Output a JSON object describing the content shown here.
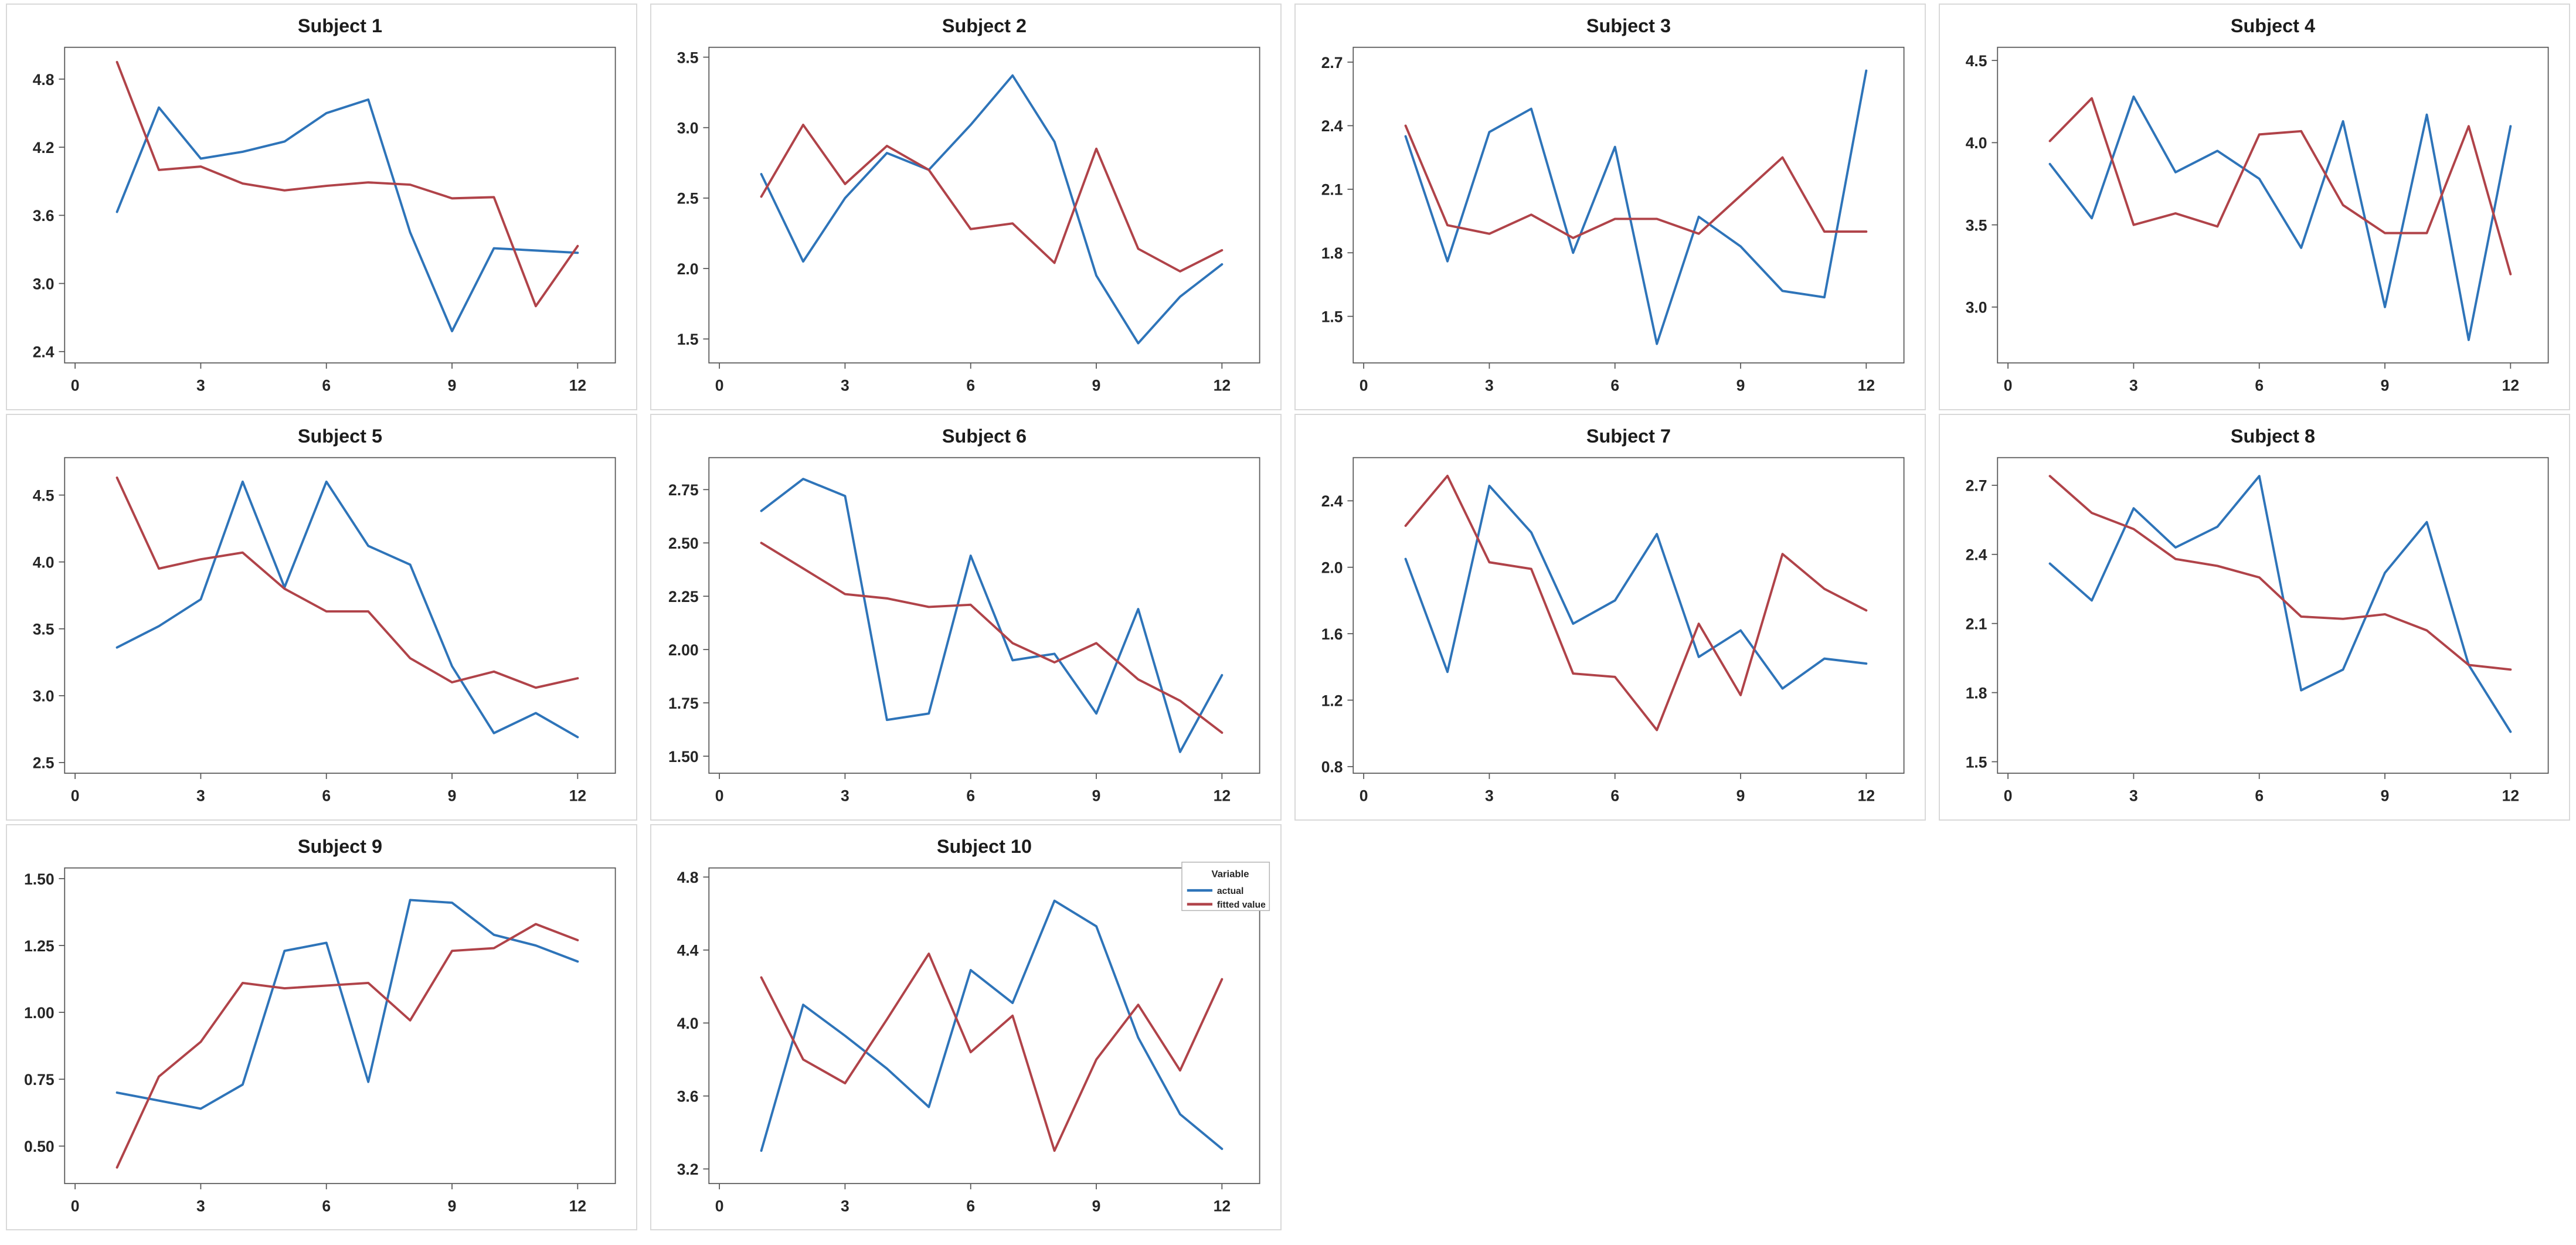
{
  "figure": {
    "background": "#ffffff",
    "panel_border_color": "#d9d9d9",
    "axis_color": "#595959",
    "legend": {
      "title": "Variable",
      "entries": [
        {
          "label": "actual",
          "color": "#2E74B9"
        },
        {
          "label": "fitted value",
          "color": "#B04349"
        }
      ]
    }
  },
  "chart_data": [
    {
      "type": "line",
      "title": "Subject 1",
      "x": [
        1,
        2,
        3,
        4,
        5,
        6,
        7,
        8,
        9,
        10,
        11,
        12
      ],
      "xticks": [
        0,
        3,
        6,
        9,
        12
      ],
      "xtick_labels": [
        "0",
        "3",
        "6",
        "9",
        "12"
      ],
      "xlim": [
        -0.25,
        12.9
      ],
      "ylim": [
        2.3,
        5.08
      ],
      "ytick_values": [
        2.4,
        3.0,
        3.6,
        4.2,
        4.8
      ],
      "ytick_labels": [
        "2.4",
        "3.0",
        "3.6",
        "4.2",
        "4.8"
      ],
      "grid": false,
      "legend_visible": false,
      "series": [
        {
          "name": "actual",
          "color": "#2E74B9",
          "values": [
            3.63,
            4.55,
            4.1,
            4.16,
            4.25,
            4.5,
            4.62,
            3.45,
            2.58,
            3.31,
            3.29,
            3.27
          ]
        },
        {
          "name": "fitted value",
          "color": "#B04349",
          "values": [
            4.95,
            4.0,
            4.03,
            3.88,
            3.82,
            3.86,
            3.89,
            3.87,
            3.75,
            3.76,
            2.8,
            3.33
          ]
        }
      ]
    },
    {
      "type": "line",
      "title": "Subject 2",
      "x": [
        1,
        2,
        3,
        4,
        5,
        6,
        7,
        8,
        9,
        10,
        11,
        12
      ],
      "xticks": [
        0,
        3,
        6,
        9,
        12
      ],
      "xtick_labels": [
        "0",
        "3",
        "6",
        "9",
        "12"
      ],
      "xlim": [
        -0.25,
        12.9
      ],
      "ylim": [
        1.33,
        3.57
      ],
      "ytick_values": [
        1.5,
        2.0,
        2.5,
        3.0,
        3.5
      ],
      "ytick_labels": [
        "1.5",
        "2.0",
        "2.5",
        "3.0",
        "3.5"
      ],
      "grid": false,
      "legend_visible": false,
      "series": [
        {
          "name": "actual",
          "color": "#2E74B9",
          "values": [
            2.67,
            2.05,
            2.5,
            2.82,
            2.7,
            3.02,
            3.37,
            2.9,
            1.95,
            1.47,
            1.8,
            2.03
          ]
        },
        {
          "name": "fitted value",
          "color": "#B04349",
          "values": [
            2.51,
            3.02,
            2.6,
            2.87,
            2.7,
            2.28,
            2.32,
            2.04,
            2.85,
            2.14,
            1.98,
            2.13
          ]
        }
      ]
    },
    {
      "type": "line",
      "title": "Subject 3",
      "x": [
        1,
        2,
        3,
        4,
        5,
        6,
        7,
        8,
        9,
        10,
        11,
        12
      ],
      "xticks": [
        0,
        3,
        6,
        9,
        12
      ],
      "xtick_labels": [
        "0",
        "3",
        "6",
        "9",
        "12"
      ],
      "xlim": [
        -0.25,
        12.9
      ],
      "ylim": [
        1.28,
        2.77
      ],
      "ytick_values": [
        1.5,
        1.8,
        2.1,
        2.4,
        2.7
      ],
      "ytick_labels": [
        "1.5",
        "1.8",
        "2.1",
        "2.4",
        "2.7"
      ],
      "grid": false,
      "legend_visible": false,
      "series": [
        {
          "name": "actual",
          "color": "#2E74B9",
          "values": [
            2.35,
            1.76,
            2.37,
            2.48,
            1.8,
            2.3,
            1.37,
            1.97,
            1.83,
            1.62,
            1.59,
            2.66
          ]
        },
        {
          "name": "fitted value",
          "color": "#B04349",
          "values": [
            2.4,
            1.93,
            1.89,
            1.98,
            1.87,
            1.96,
            1.96,
            1.89,
            2.07,
            2.25,
            1.9,
            1.9
          ]
        }
      ]
    },
    {
      "type": "line",
      "title": "Subject 4",
      "x": [
        1,
        2,
        3,
        4,
        5,
        6,
        7,
        8,
        9,
        10,
        11,
        12
      ],
      "xticks": [
        0,
        3,
        6,
        9,
        12
      ],
      "xtick_labels": [
        "0",
        "3",
        "6",
        "9",
        "12"
      ],
      "xlim": [
        -0.25,
        12.9
      ],
      "ylim": [
        2.66,
        4.58
      ],
      "ytick_values": [
        3.0,
        3.5,
        4.0,
        4.5
      ],
      "ytick_labels": [
        "3.0",
        "3.5",
        "4.0",
        "4.5"
      ],
      "grid": false,
      "legend_visible": false,
      "series": [
        {
          "name": "actual",
          "color": "#2E74B9",
          "values": [
            3.87,
            3.54,
            4.28,
            3.82,
            3.95,
            3.78,
            3.36,
            4.13,
            3.0,
            4.17,
            2.8,
            4.1
          ]
        },
        {
          "name": "fitted value",
          "color": "#B04349",
          "values": [
            4.01,
            4.27,
            3.5,
            3.57,
            3.49,
            4.05,
            4.07,
            3.62,
            3.45,
            3.45,
            4.1,
            3.2
          ]
        }
      ]
    },
    {
      "type": "line",
      "title": "Subject 5",
      "x": [
        1,
        2,
        3,
        4,
        5,
        6,
        7,
        8,
        9,
        10,
        11,
        12
      ],
      "xticks": [
        0,
        3,
        6,
        9,
        12
      ],
      "xtick_labels": [
        "0",
        "3",
        "6",
        "9",
        "12"
      ],
      "xlim": [
        -0.25,
        12.9
      ],
      "ylim": [
        2.42,
        4.78
      ],
      "ytick_values": [
        2.5,
        3.0,
        3.5,
        4.0,
        4.5
      ],
      "ytick_labels": [
        "2.5",
        "3.0",
        "3.5",
        "4.0",
        "4.5"
      ],
      "grid": false,
      "legend_visible": false,
      "series": [
        {
          "name": "actual",
          "color": "#2E74B9",
          "values": [
            3.36,
            3.52,
            3.72,
            4.6,
            3.81,
            4.6,
            4.12,
            3.98,
            3.22,
            2.72,
            2.87,
            2.69
          ]
        },
        {
          "name": "fitted value",
          "color": "#B04349",
          "values": [
            4.63,
            3.95,
            4.02,
            4.07,
            3.8,
            3.63,
            3.63,
            3.28,
            3.1,
            3.18,
            3.06,
            3.13
          ]
        }
      ]
    },
    {
      "type": "line",
      "title": "Subject 6",
      "x": [
        1,
        2,
        3,
        4,
        5,
        6,
        7,
        8,
        9,
        10,
        11,
        12
      ],
      "xticks": [
        0,
        3,
        6,
        9,
        12
      ],
      "xtick_labels": [
        "0",
        "3",
        "6",
        "9",
        "12"
      ],
      "xlim": [
        -0.25,
        12.9
      ],
      "ylim": [
        1.42,
        2.9
      ],
      "ytick_values": [
        1.5,
        1.75,
        2.0,
        2.25,
        2.5,
        2.75
      ],
      "ytick_labels": [
        "1.50",
        "1.75",
        "2.00",
        "2.25",
        "2.50",
        "2.75"
      ],
      "grid": false,
      "legend_visible": false,
      "series": [
        {
          "name": "actual",
          "color": "#2E74B9",
          "values": [
            2.65,
            2.8,
            2.72,
            1.67,
            1.7,
            2.44,
            1.95,
            1.98,
            1.7,
            2.19,
            1.52,
            1.88
          ]
        },
        {
          "name": "fitted value",
          "color": "#B04349",
          "values": [
            2.5,
            2.38,
            2.26,
            2.24,
            2.2,
            2.21,
            2.03,
            1.94,
            2.03,
            1.86,
            1.76,
            1.61
          ]
        }
      ]
    },
    {
      "type": "line",
      "title": "Subject 7",
      "x": [
        1,
        2,
        3,
        4,
        5,
        6,
        7,
        8,
        9,
        10,
        11,
        12
      ],
      "xticks": [
        0,
        3,
        6,
        9,
        12
      ],
      "xtick_labels": [
        "0",
        "3",
        "6",
        "9",
        "12"
      ],
      "xlim": [
        -0.25,
        12.9
      ],
      "ylim": [
        0.76,
        2.66
      ],
      "ytick_values": [
        0.8,
        1.2,
        1.6,
        2.0,
        2.4
      ],
      "ytick_labels": [
        "0.8",
        "1.2",
        "1.6",
        "2.0",
        "2.4"
      ],
      "grid": false,
      "legend_visible": false,
      "series": [
        {
          "name": "actual",
          "color": "#2E74B9",
          "values": [
            2.05,
            1.37,
            2.49,
            2.21,
            1.66,
            1.8,
            2.2,
            1.46,
            1.62,
            1.27,
            1.45,
            1.42
          ]
        },
        {
          "name": "fitted value",
          "color": "#B04349",
          "values": [
            2.25,
            2.55,
            2.03,
            1.99,
            1.36,
            1.34,
            1.02,
            1.66,
            1.23,
            2.08,
            1.87,
            1.74
          ]
        }
      ]
    },
    {
      "type": "line",
      "title": "Subject 8",
      "x": [
        1,
        2,
        3,
        4,
        5,
        6,
        7,
        8,
        9,
        10,
        11,
        12
      ],
      "xticks": [
        0,
        3,
        6,
        9,
        12
      ],
      "xtick_labels": [
        "0",
        "3",
        "6",
        "9",
        "12"
      ],
      "xlim": [
        -0.25,
        12.9
      ],
      "ylim": [
        1.45,
        2.82
      ],
      "ytick_values": [
        1.5,
        1.8,
        2.1,
        2.4,
        2.7
      ],
      "ytick_labels": [
        "1.5",
        "1.8",
        "2.1",
        "2.4",
        "2.7"
      ],
      "grid": false,
      "legend_visible": false,
      "series": [
        {
          "name": "actual",
          "color": "#2E74B9",
          "values": [
            2.36,
            2.2,
            2.6,
            2.43,
            2.52,
            2.74,
            1.81,
            1.9,
            2.32,
            2.54,
            1.92,
            1.63
          ]
        },
        {
          "name": "fitted value",
          "color": "#B04349",
          "values": [
            2.74,
            2.58,
            2.51,
            2.38,
            2.35,
            2.3,
            2.13,
            2.12,
            2.14,
            2.07,
            1.92,
            1.9
          ]
        }
      ]
    },
    {
      "type": "line",
      "title": "Subject 9",
      "x": [
        1,
        2,
        3,
        4,
        5,
        6,
        7,
        8,
        9,
        10,
        11,
        12
      ],
      "xticks": [
        0,
        3,
        6,
        9,
        12
      ],
      "xtick_labels": [
        "0",
        "3",
        "6",
        "9",
        "12"
      ],
      "xlim": [
        -0.25,
        12.9
      ],
      "ylim": [
        0.36,
        1.54
      ],
      "ytick_values": [
        0.5,
        0.75,
        1.0,
        1.25,
        1.5
      ],
      "ytick_labels": [
        "0.50",
        "0.75",
        "1.00",
        "1.25",
        "1.50"
      ],
      "grid": false,
      "legend_visible": false,
      "series": [
        {
          "name": "actual",
          "color": "#2E74B9",
          "values": [
            0.7,
            0.67,
            0.64,
            0.73,
            1.23,
            1.26,
            0.74,
            1.42,
            1.41,
            1.29,
            1.25,
            1.19
          ]
        },
        {
          "name": "fitted value",
          "color": "#B04349",
          "values": [
            0.42,
            0.76,
            0.89,
            1.11,
            1.09,
            1.1,
            1.11,
            0.97,
            1.23,
            1.24,
            1.33,
            1.27
          ]
        }
      ]
    },
    {
      "type": "line",
      "title": "Subject 10",
      "x": [
        1,
        2,
        3,
        4,
        5,
        6,
        7,
        8,
        9,
        10,
        11,
        12
      ],
      "xticks": [
        0,
        3,
        6,
        9,
        12
      ],
      "xtick_labels": [
        "0",
        "3",
        "6",
        "9",
        "12"
      ],
      "xlim": [
        -0.25,
        12.9
      ],
      "ylim": [
        3.12,
        4.85
      ],
      "ytick_values": [
        3.2,
        3.6,
        4.0,
        4.4,
        4.8
      ],
      "ytick_labels": [
        "3.2",
        "3.6",
        "4.0",
        "4.4",
        "4.8"
      ],
      "grid": false,
      "legend_visible": true,
      "legend_position": "top-right",
      "series": [
        {
          "name": "actual",
          "color": "#2E74B9",
          "values": [
            3.3,
            4.1,
            3.93,
            3.75,
            3.54,
            4.29,
            4.11,
            4.67,
            4.53,
            3.92,
            3.5,
            3.31
          ]
        },
        {
          "name": "fitted value",
          "color": "#B04349",
          "values": [
            4.25,
            3.8,
            3.67,
            4.02,
            4.38,
            3.84,
            4.04,
            3.3,
            3.8,
            4.1,
            3.74,
            4.24
          ]
        }
      ]
    }
  ]
}
